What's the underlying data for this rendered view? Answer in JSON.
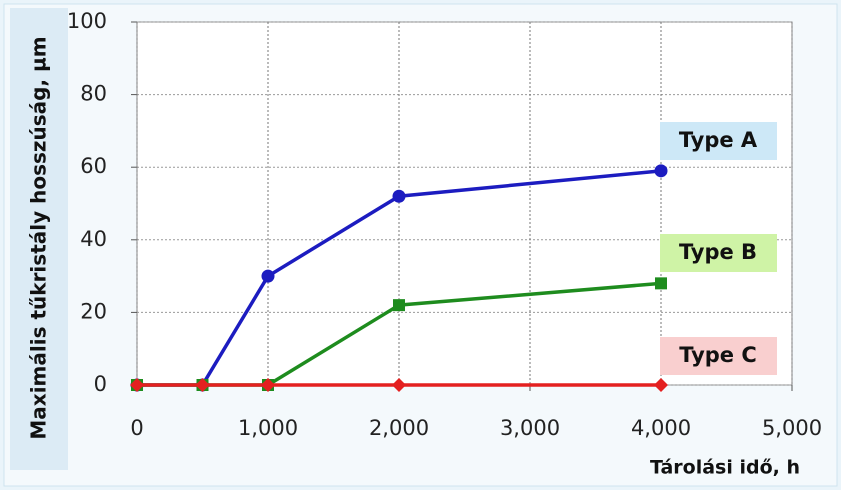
{
  "chart_data": {
    "type": "line",
    "x_label": "Tárolási idő, h",
    "y_label": "Maximális tűkristály hosszúság, µm",
    "x": [
      0,
      500,
      1000,
      2000,
      4000
    ],
    "series": [
      {
        "name": "Type A",
        "color": "#1c1cc0",
        "marker": "circle",
        "label_bg": "#cde8f7",
        "values": [
          0,
          0,
          30,
          52,
          59
        ]
      },
      {
        "name": "Type B",
        "color": "#1e8c1e",
        "marker": "square",
        "label_bg": "#cff3a6",
        "values": [
          0,
          0,
          0,
          22,
          28
        ]
      },
      {
        "name": "Type C",
        "color": "#e42020",
        "marker": "diamond",
        "label_bg": "#f9cfcf",
        "values": [
          0,
          0,
          0,
          0,
          0
        ]
      }
    ],
    "xlim": [
      0,
      5000
    ],
    "xticks": [
      0,
      {
        "value": 1000,
        "label": "1,000"
      },
      {
        "value": 2000,
        "label": "2,000"
      },
      {
        "value": 3000,
        "label": "3,000"
      },
      {
        "value": 4000,
        "label": "4,000"
      },
      {
        "value": 5000,
        "label": "5,000"
      }
    ],
    "ylim": [
      0,
      100
    ],
    "yticks": [
      0,
      20,
      40,
      60,
      80,
      100
    ],
    "grid": true
  }
}
